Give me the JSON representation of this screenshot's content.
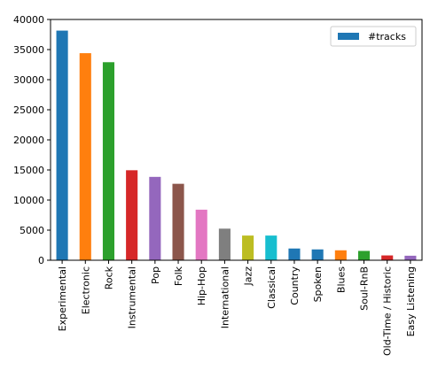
{
  "chart_data": {
    "type": "bar",
    "categories": [
      "Experimental",
      "Electronic",
      "Rock",
      "Instrumental",
      "Pop",
      "Folk",
      "Hip-Hop",
      "International",
      "Jazz",
      "Classical",
      "Country",
      "Spoken",
      "Blues",
      "Soul-RnB",
      "Old-Time / Historic",
      "Easy Listening"
    ],
    "series": [
      {
        "name": "#tracks",
        "values": [
          38150,
          34400,
          32900,
          14950,
          13850,
          12700,
          8400,
          5250,
          4100,
          4100,
          1950,
          1800,
          1650,
          1550,
          800,
          750
        ]
      }
    ],
    "bar_colors": [
      "#1f77b4",
      "#ff7f0e",
      "#2ca02c",
      "#d62728",
      "#9467bd",
      "#8c564b",
      "#e377c2",
      "#7f7f7f",
      "#bcbd22",
      "#17becf",
      "#1f77b4",
      "#1f77b4",
      "#ff7f0e",
      "#2ca02c",
      "#d62728",
      "#9467bd"
    ],
    "ylim": [
      0,
      40000
    ],
    "yticks": [
      0,
      5000,
      10000,
      15000,
      20000,
      25000,
      30000,
      35000,
      40000
    ],
    "legend": {
      "label": "#tracks",
      "color": "#1f77b4",
      "position": "top-right"
    },
    "grid": false,
    "title": "",
    "xlabel": "",
    "ylabel": ""
  }
}
